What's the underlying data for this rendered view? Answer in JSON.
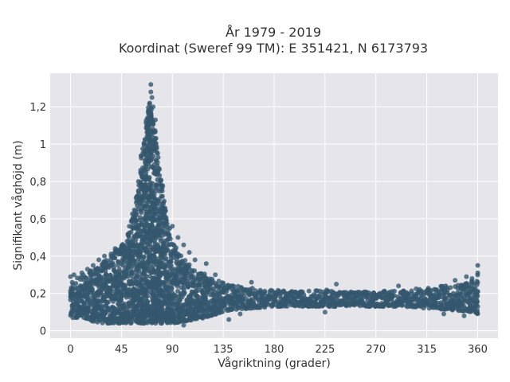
{
  "chart_data": {
    "type": "scatter",
    "title_line1": "År 1979 - 2019",
    "title_line2": "Koordinat (Sweref 99 TM): E 351421, N 6173793",
    "xlabel": "Vågriktning (grader)",
    "ylabel": "Signifikant våghöjd (m)",
    "xlim": [
      -18,
      378
    ],
    "ylim": [
      -0.04,
      1.38
    ],
    "xticks": [
      0,
      45,
      90,
      135,
      180,
      225,
      270,
      315,
      360
    ],
    "xtick_labels": [
      "0",
      "45",
      "90",
      "135",
      "180",
      "225",
      "270",
      "315",
      "360"
    ],
    "yticks": [
      0,
      0.2,
      0.4,
      0.6,
      0.8,
      1.0,
      1.2
    ],
    "ytick_labels": [
      "0",
      "0,2",
      "0,4",
      "0,6",
      "0,8",
      "1",
      "1,2"
    ],
    "grid": true,
    "legend": "none",
    "marker_color": "#34586e",
    "background_color": "#e5e5ea",
    "series": [
      {
        "envelope_direction": [
          0,
          10,
          20,
          30,
          40,
          50,
          55,
          60,
          65,
          70,
          75,
          80,
          85,
          90,
          100,
          110,
          120,
          130,
          140,
          160,
          180,
          200,
          225,
          250,
          270,
          290,
          315,
          340,
          355,
          360
        ],
        "envelope_max_height": [
          0.26,
          0.3,
          0.33,
          0.38,
          0.45,
          0.5,
          0.62,
          0.8,
          1.05,
          1.24,
          1.1,
          0.82,
          0.62,
          0.48,
          0.38,
          0.33,
          0.3,
          0.27,
          0.25,
          0.23,
          0.22,
          0.21,
          0.22,
          0.21,
          0.21,
          0.22,
          0.23,
          0.25,
          0.27,
          0.3
        ],
        "envelope_min_height": [
          0.07,
          0.07,
          0.05,
          0.04,
          0.04,
          0.04,
          0.04,
          0.04,
          0.04,
          0.04,
          0.04,
          0.04,
          0.04,
          0.04,
          0.05,
          0.06,
          0.07,
          0.09,
          0.11,
          0.12,
          0.13,
          0.13,
          0.13,
          0.13,
          0.13,
          0.13,
          0.12,
          0.11,
          0.1,
          0.09
        ],
        "points": [
          [
            71,
            1.32
          ],
          [
            71,
            1.28
          ],
          [
            72,
            1.25
          ],
          [
            70,
            1.22
          ],
          [
            73,
            1.2
          ],
          [
            68,
            1.14
          ],
          [
            75,
            1.13
          ],
          [
            69,
            1.05
          ],
          [
            74,
            1.02
          ],
          [
            77,
            0.95
          ],
          [
            66,
            0.9
          ],
          [
            62,
            0.86
          ],
          [
            60,
            0.8
          ],
          [
            80,
            0.78
          ],
          [
            63,
            0.72
          ],
          [
            82,
            0.68
          ],
          [
            58,
            0.62
          ],
          [
            84,
            0.6
          ],
          [
            55,
            0.55
          ],
          [
            90,
            0.56
          ],
          [
            95,
            0.5
          ],
          [
            50,
            0.48
          ],
          [
            100,
            0.46
          ],
          [
            45,
            0.44
          ],
          [
            40,
            0.42
          ],
          [
            105,
            0.42
          ],
          [
            110,
            0.38
          ],
          [
            30,
            0.4
          ],
          [
            120,
            0.36
          ],
          [
            128,
            0.3
          ],
          [
            25,
            0.38
          ],
          [
            20,
            0.35
          ],
          [
            15,
            0.33
          ],
          [
            10,
            0.31
          ],
          [
            3,
            0.3
          ],
          [
            0,
            0.29
          ],
          [
            160,
            0.26
          ],
          [
            235,
            0.25
          ],
          [
            290,
            0.24
          ],
          [
            340,
            0.27
          ],
          [
            350,
            0.29
          ],
          [
            355,
            0.28
          ],
          [
            360,
            0.35
          ],
          [
            360,
            0.31
          ],
          [
            2,
            0.07
          ],
          [
            5,
            0.08
          ],
          [
            100,
            0.03
          ],
          [
            140,
            0.06
          ],
          [
            150,
            0.09
          ],
          [
            225,
            0.1
          ],
          [
            330,
            0.09
          ],
          [
            348,
            0.08
          ],
          [
            358,
            0.1
          ]
        ]
      }
    ]
  }
}
